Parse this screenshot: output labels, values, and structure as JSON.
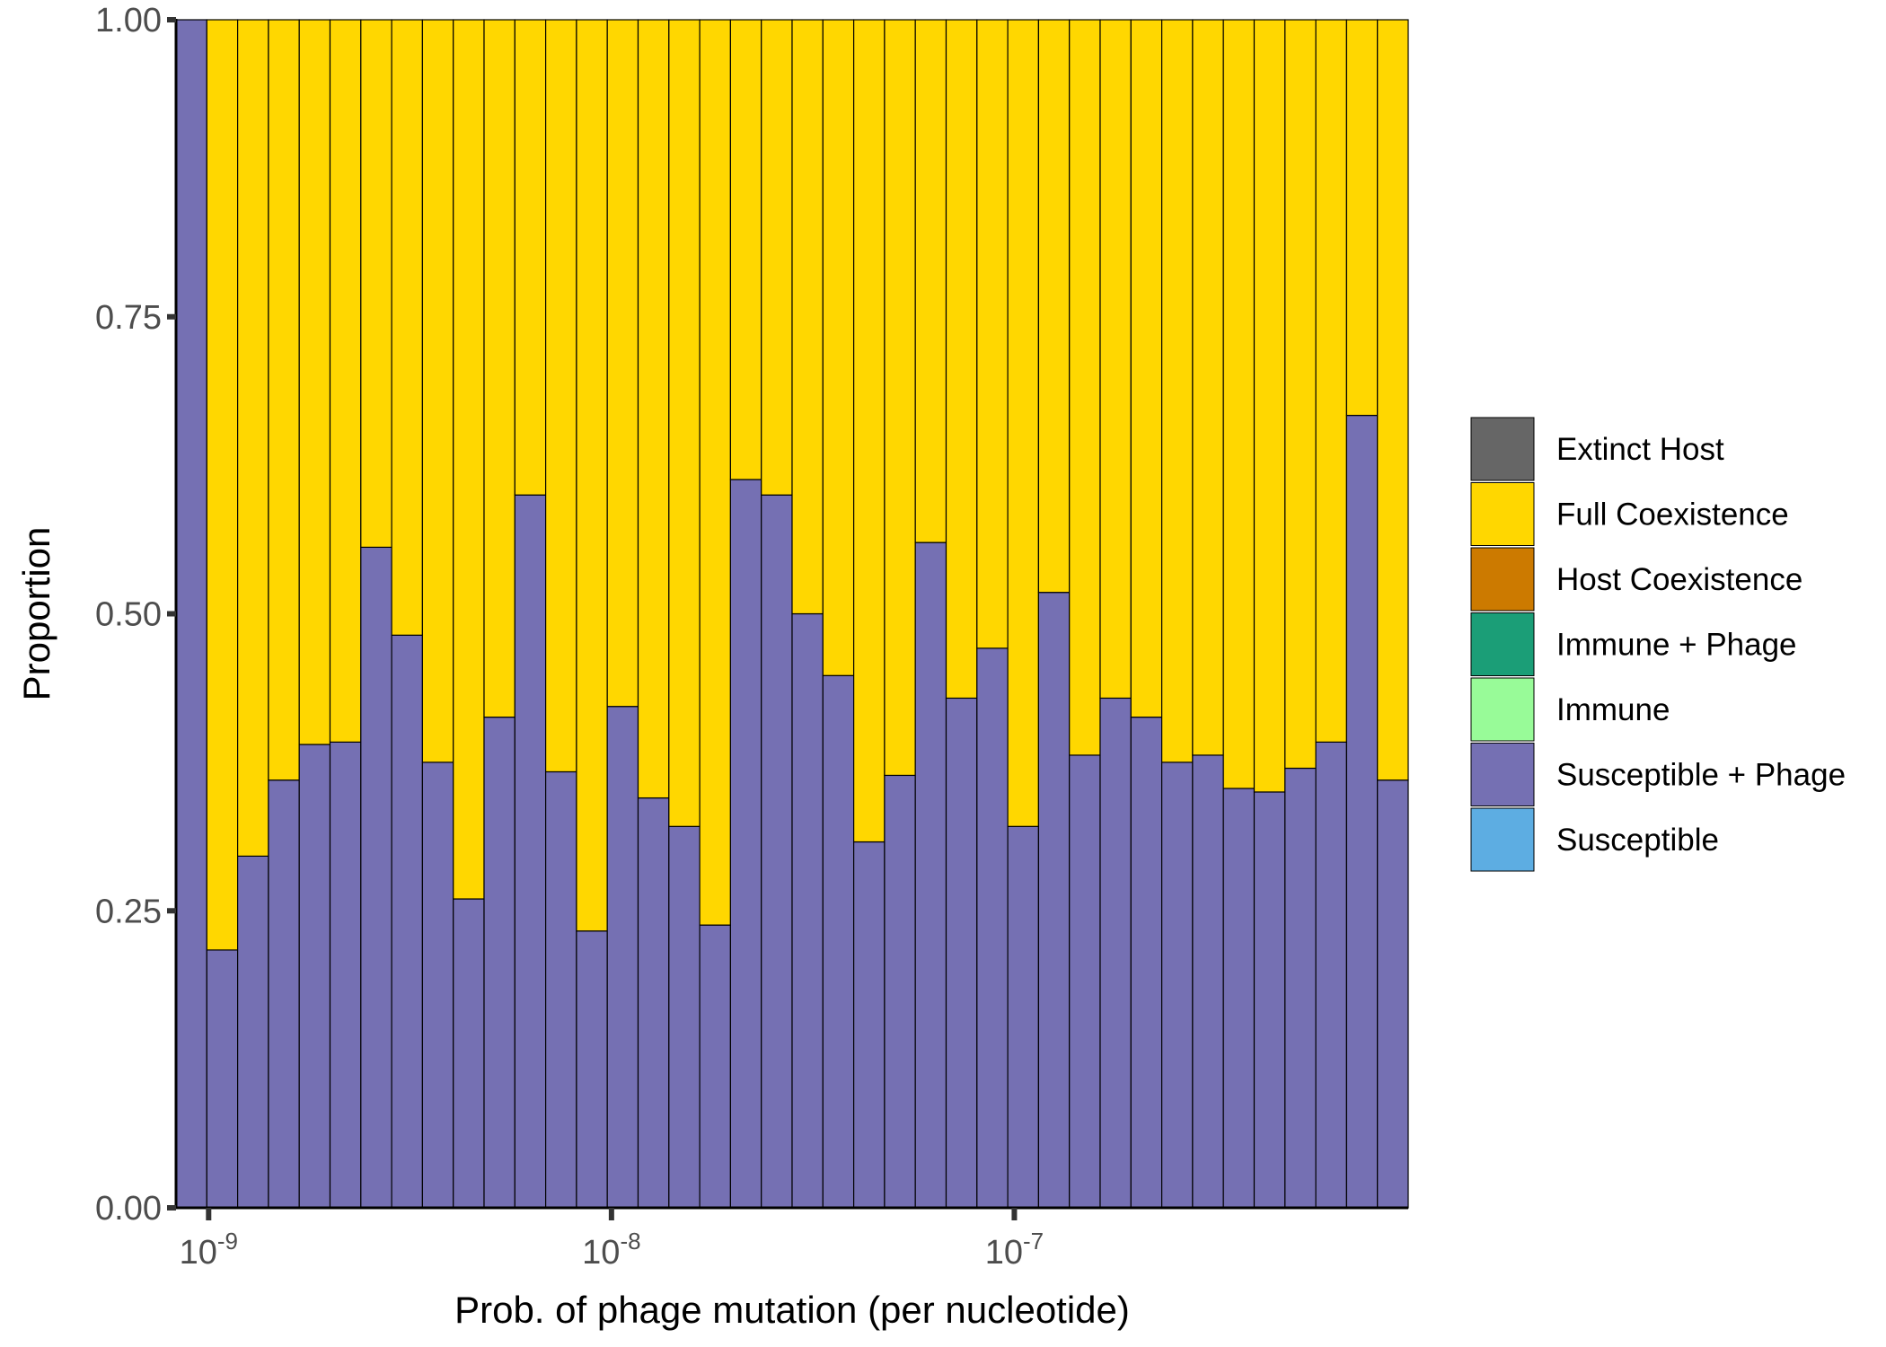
{
  "chart_data": {
    "type": "bar",
    "stacked": true,
    "x_scale": "log10",
    "xlabel": "Prob. of phage mutation (per nucleotide)",
    "ylabel": "Proportion",
    "ylim": [
      0,
      1
    ],
    "xlim": [
      8.3e-10,
      9.5e-07
    ],
    "y_ticks": [
      0,
      0.25,
      0.5,
      0.75,
      1
    ],
    "y_tick_labels": [
      "0.00",
      "0.25",
      "0.50",
      "0.75",
      "1.00"
    ],
    "x_ticks": [
      1e-09,
      1e-08,
      1e-07
    ],
    "x_tick_labels": [
      {
        "base": "10",
        "exp": "-9"
      },
      {
        "base": "10",
        "exp": "-8"
      },
      {
        "base": "10",
        "exp": "-7"
      }
    ],
    "grid": false,
    "legend_position": "right",
    "bin_count": 40,
    "bin_width_log10": 0.0762,
    "bins_log10_center": [
      -9.038,
      -8.962,
      -8.886,
      -8.81,
      -8.733,
      -8.657,
      -8.581,
      -8.505,
      -8.429,
      -8.352,
      -8.276,
      -8.2,
      -8.124,
      -8.048,
      -7.971,
      -7.895,
      -7.819,
      -7.743,
      -7.667,
      -7.59,
      -7.514,
      -7.438,
      -7.362,
      -7.286,
      -7.21,
      -7.133,
      -7.057,
      -6.981,
      -6.905,
      -6.829,
      -6.752,
      -6.676,
      -6.6,
      -6.524,
      -6.448,
      -6.371,
      -6.295,
      -6.219,
      -6.143,
      -6.067
    ],
    "legend": [
      {
        "name": "Extinct Host",
        "color": "#666666"
      },
      {
        "name": "Full Coexistence",
        "color": "#ffd700"
      },
      {
        "name": "Host Coexistence",
        "color": "#cc7a00"
      },
      {
        "name": "Immune + Phage",
        "color": "#1b9e77"
      },
      {
        "name": "Immune",
        "color": "#98fb98"
      },
      {
        "name": "Susceptible + Phage",
        "color": "#7570b3"
      },
      {
        "name": "Susceptible",
        "color": "#5dade2"
      }
    ],
    "series": [
      {
        "name": "Susceptible + Phage",
        "color": "#7570b3",
        "values": [
          1.0,
          0.217,
          0.296,
          0.36,
          0.39,
          0.392,
          0.556,
          0.482,
          0.375,
          0.26,
          0.413,
          0.6,
          0.367,
          0.233,
          0.422,
          0.345,
          0.321,
          0.238,
          0.613,
          0.6,
          0.5,
          0.448,
          0.308,
          0.364,
          0.56,
          0.429,
          0.471,
          0.321,
          0.518,
          0.381,
          0.429,
          0.413,
          0.375,
          0.381,
          0.353,
          0.35,
          0.37,
          0.392,
          0.667,
          0.36
        ]
      },
      {
        "name": "Full Coexistence",
        "color": "#ffd700",
        "values": [
          0.0,
          0.783,
          0.704,
          0.64,
          0.61,
          0.608,
          0.444,
          0.518,
          0.625,
          0.74,
          0.587,
          0.4,
          0.633,
          0.767,
          0.578,
          0.655,
          0.679,
          0.762,
          0.387,
          0.4,
          0.5,
          0.552,
          0.692,
          0.636,
          0.44,
          0.571,
          0.529,
          0.679,
          0.482,
          0.619,
          0.571,
          0.587,
          0.625,
          0.619,
          0.647,
          0.65,
          0.63,
          0.608,
          0.333,
          0.64
        ]
      }
    ]
  }
}
